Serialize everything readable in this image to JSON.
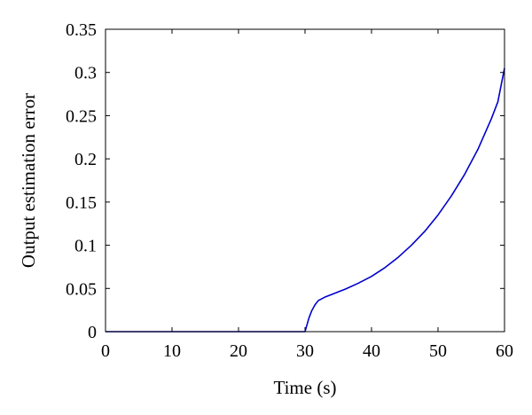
{
  "chart_data": {
    "type": "line",
    "xlabel": "Time (s)",
    "ylabel": "Output estimation error",
    "xlim": [
      0,
      60
    ],
    "ylim": [
      0,
      0.35
    ],
    "xticks": [
      0,
      10,
      20,
      30,
      40,
      50,
      60
    ],
    "yticks": [
      0,
      0.05,
      0.1,
      0.15,
      0.2,
      0.25,
      0.3,
      0.35
    ],
    "x_tick_labels": [
      "0",
      "10",
      "20",
      "30",
      "40",
      "50",
      "60"
    ],
    "y_tick_labels": [
      "0",
      "0.05",
      "0.1",
      "0.15",
      "0.2",
      "0.25",
      "0.3",
      "0.35"
    ],
    "grid": false,
    "series": [
      {
        "color": "#0000cc",
        "points": [
          [
            0,
            0
          ],
          [
            10,
            0
          ],
          [
            20,
            0
          ],
          [
            30,
            0
          ],
          [
            30.3,
            0.008
          ],
          [
            30.6,
            0.016
          ],
          [
            31,
            0.024
          ],
          [
            31.5,
            0.031
          ],
          [
            32,
            0.036
          ],
          [
            33,
            0.04
          ],
          [
            34,
            0.043
          ],
          [
            35,
            0.046
          ],
          [
            36,
            0.049
          ],
          [
            38,
            0.056
          ],
          [
            40,
            0.064
          ],
          [
            42,
            0.074
          ],
          [
            44,
            0.086
          ],
          [
            46,
            0.1
          ],
          [
            48,
            0.116
          ],
          [
            50,
            0.135
          ],
          [
            52,
            0.157
          ],
          [
            54,
            0.182
          ],
          [
            56,
            0.211
          ],
          [
            58,
            0.246
          ],
          [
            59,
            0.266
          ],
          [
            60,
            0.305
          ]
        ]
      }
    ]
  }
}
